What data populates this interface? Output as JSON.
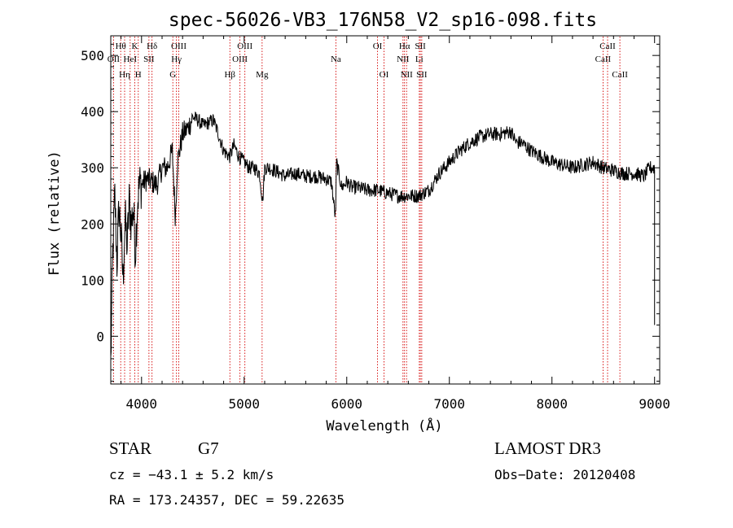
{
  "chart_data": {
    "type": "line",
    "title": "spec-56026-VB3_176N58_V2_sp16-098.fits",
    "xlabel": "Wavelength (Å)",
    "ylabel": "Flux (relative)",
    "xlim": [
      3700,
      9050
    ],
    "ylim": [
      -85,
      535
    ],
    "x_ticks": [
      4000,
      5000,
      6000,
      7000,
      8000,
      9000
    ],
    "x_tick_labels": [
      "4000",
      "5000",
      "6000",
      "7000",
      "8000",
      "9000"
    ],
    "y_ticks": [
      0,
      100,
      200,
      300,
      400,
      500
    ],
    "y_tick_labels": [
      "0",
      "100",
      "200",
      "300",
      "400",
      "500"
    ],
    "grid": false,
    "series": [
      {
        "x": [
          3700,
          3720,
          3740,
          3760,
          3780,
          3800,
          3820,
          3840,
          3860,
          3880,
          3900,
          3920,
          3940,
          3960,
          3980,
          4000,
          4050,
          4100,
          4150,
          4200,
          4250,
          4300,
          4330,
          4350,
          4400,
          4450,
          4500,
          4550,
          4600,
          4650,
          4700,
          4750,
          4800,
          4860,
          4900,
          4950,
          5000,
          5050,
          5100,
          5150,
          5180,
          5200,
          5250,
          5300,
          5400,
          5500,
          5600,
          5700,
          5800,
          5850,
          5890,
          5900,
          5950,
          6000,
          6050,
          6100,
          6200,
          6300,
          6400,
          6500,
          6560,
          6600,
          6700,
          6800,
          6900,
          7000,
          7100,
          7200,
          7300,
          7400,
          7500,
          7600,
          7650,
          7700,
          7800,
          7900,
          8000,
          8100,
          8200,
          8300,
          8400,
          8500,
          8600,
          8700,
          8800,
          8900,
          8950,
          9000
        ],
        "y": [
          -50,
          150,
          250,
          130,
          230,
          180,
          100,
          210,
          160,
          240,
          200,
          230,
          150,
          240,
          270,
          270,
          280,
          275,
          270,
          300,
          300,
          330,
          210,
          310,
          360,
          370,
          390,
          385,
          375,
          380,
          385,
          360,
          330,
          320,
          340,
          320,
          310,
          300,
          300,
          290,
          240,
          300,
          300,
          295,
          285,
          290,
          285,
          285,
          280,
          275,
          210,
          310,
          265,
          275,
          265,
          265,
          260,
          260,
          255,
          250,
          250,
          250,
          250,
          260,
          290,
          310,
          330,
          345,
          355,
          360,
          360,
          365,
          345,
          345,
          330,
          320,
          310,
          305,
          300,
          305,
          310,
          300,
          295,
          290,
          290,
          285,
          300,
          300
        ]
      }
    ],
    "lines": [
      {
        "label": "OII",
        "x": 3727,
        "row": 2
      },
      {
        "label": "Hθ",
        "x": 3797,
        "row": 1
      },
      {
        "label": "Hη",
        "x": 3835,
        "row": 3
      },
      {
        "label": "HeI",
        "x": 3889,
        "row": 2
      },
      {
        "label": "K",
        "x": 3934,
        "row": 1
      },
      {
        "label": "H",
        "x": 3968,
        "row": 3
      },
      {
        "label": "SII",
        "x": 4072,
        "row": 2
      },
      {
        "label": "Hδ",
        "x": 4102,
        "row": 1
      },
      {
        "label": "G",
        "x": 4305,
        "row": 3
      },
      {
        "label": "Hγ",
        "x": 4340,
        "row": 2
      },
      {
        "label": "OIII",
        "x": 4363,
        "row": 1
      },
      {
        "label": "Hβ",
        "x": 4861,
        "row": 3
      },
      {
        "label": "OIII",
        "x": 4959,
        "row": 2
      },
      {
        "label": "OIII",
        "x": 5007,
        "row": 1
      },
      {
        "label": "Mg",
        "x": 5175,
        "row": 3
      },
      {
        "label": "Na",
        "x": 5894,
        "row": 2
      },
      {
        "label": "OI",
        "x": 6300,
        "row": 1
      },
      {
        "label": "OI",
        "x": 6363,
        "row": 3
      },
      {
        "label": "NII",
        "x": 6548,
        "row": 2
      },
      {
        "label": "Hα",
        "x": 6563,
        "row": 1
      },
      {
        "label": "NII",
        "x": 6583,
        "row": 3
      },
      {
        "label": "Li",
        "x": 6707,
        "row": 2
      },
      {
        "label": "SII",
        "x": 6717,
        "row": 1
      },
      {
        "label": "SII",
        "x": 6731,
        "row": 3
      },
      {
        "label": "CaII",
        "x": 8498,
        "row": 2
      },
      {
        "label": "CaII",
        "x": 8542,
        "row": 1
      },
      {
        "label": "CaII",
        "x": 8662,
        "row": 3
      }
    ]
  },
  "info": {
    "object_type": "STAR",
    "subclass": "G7",
    "survey": "LAMOST DR3",
    "redshift": "cz = −43.1 ± 5.2 km/s",
    "obs_date": "Obs−Date: 20120408",
    "coords": "RA = 173.24357, DEC =  59.22635"
  },
  "colors": {
    "axis": "#000000",
    "spectrum": "#000000",
    "line_markers": "#d40000",
    "background": "#ffffff"
  }
}
